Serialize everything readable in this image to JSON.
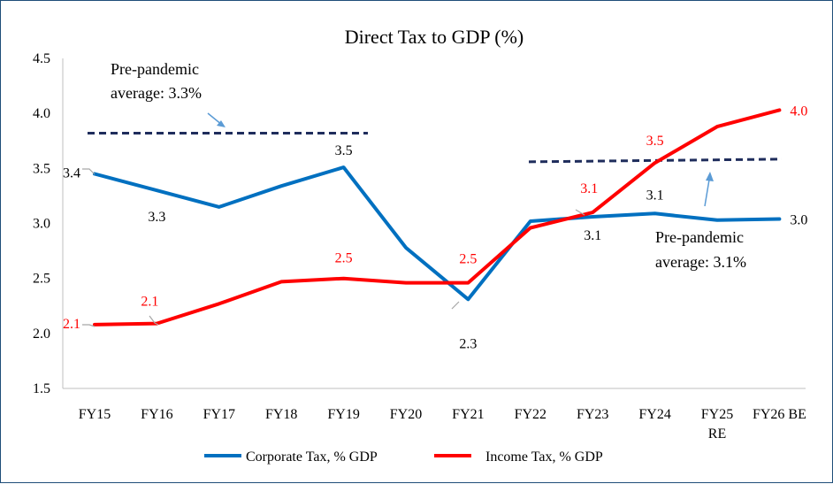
{
  "chart_data": {
    "type": "line",
    "title": "Direct Tax to GDP (%)",
    "categories": [
      "FY15",
      "FY16",
      "FY17",
      "FY18",
      "FY19",
      "FY20",
      "FY21",
      "FY22",
      "FY23",
      "FY24",
      "FY25 RE",
      "FY26 BE"
    ],
    "ylim": [
      1.5,
      4.5
    ],
    "yticks": [
      "1.5",
      "2.0",
      "2.5",
      "3.0",
      "3.5",
      "4.0",
      "4.5"
    ],
    "grid": false,
    "legend_position": "bottom",
    "series": [
      {
        "name": "Corporate Tax, % GDP",
        "color": "#0070c0",
        "values": [
          3.45,
          3.3,
          3.15,
          3.34,
          3.51,
          2.78,
          2.31,
          3.02,
          3.06,
          3.09,
          3.03,
          3.04
        ],
        "data_labels": [
          "3.4",
          "3.3",
          "",
          "",
          "3.5",
          "",
          "2.3",
          "",
          "3.1",
          "3.1",
          "",
          "3.0"
        ]
      },
      {
        "name": "Income Tax, % GDP",
        "color": "#ff0000",
        "values": [
          2.08,
          2.09,
          2.27,
          2.47,
          2.5,
          2.46,
          2.46,
          2.96,
          3.1,
          3.55,
          3.88,
          4.03
        ],
        "data_labels": [
          "2.1",
          "2.1",
          "",
          "",
          "2.5",
          "",
          "2.5",
          "",
          "3.1",
          "3.5",
          "",
          "4.0"
        ]
      }
    ],
    "reference_lines": [
      {
        "from": "FY15",
        "to": "FY20",
        "value": 3.82,
        "color": "#1f2d5c",
        "label_line1": "Pre-pandemic",
        "label_line2": "average: 3.3%"
      },
      {
        "from": "FY22",
        "to": "FY26 BE",
        "value": 3.56,
        "color": "#1f2d5c",
        "label_line1": "Pre-pandemic",
        "label_line2": "average: 3.1%"
      }
    ]
  }
}
